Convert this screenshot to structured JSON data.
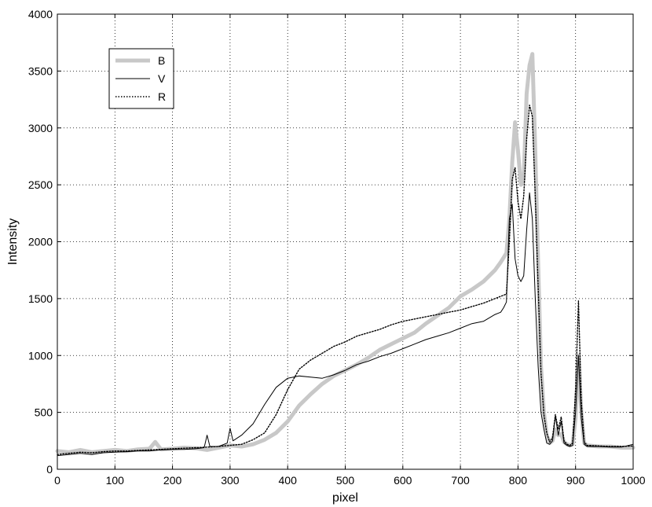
{
  "chart_data": {
    "type": "line",
    "title": "",
    "xlabel": "pixel",
    "ylabel": "Intensity",
    "xlim": [
      0,
      1000
    ],
    "ylim": [
      0,
      4000
    ],
    "x_ticks": [
      0,
      100,
      200,
      300,
      400,
      500,
      600,
      700,
      800,
      900,
      1000
    ],
    "y_ticks": [
      0,
      500,
      1000,
      1500,
      2000,
      2500,
      3000,
      3500,
      4000
    ],
    "x_tick_labels": [
      "0",
      "100",
      "200",
      "300",
      "400",
      "500",
      "600",
      "700",
      "800",
      "900",
      "1000"
    ],
    "y_tick_labels": [
      "0",
      "500",
      "1000",
      "1500",
      "2000",
      "2500",
      "3000",
      "3500",
      "4000"
    ],
    "grid": true,
    "legend_position": "top-left",
    "series": [
      {
        "name": "B",
        "style": "thick-gray",
        "color": "#c8c8c8",
        "x": [
          0,
          20,
          40,
          60,
          80,
          100,
          120,
          140,
          160,
          170,
          180,
          200,
          220,
          240,
          260,
          280,
          300,
          320,
          340,
          360,
          380,
          400,
          420,
          440,
          460,
          480,
          500,
          520,
          540,
          560,
          580,
          600,
          620,
          640,
          660,
          680,
          700,
          720,
          740,
          760,
          770,
          780,
          785,
          790,
          795,
          800,
          805,
          810,
          815,
          820,
          825,
          830,
          835,
          840,
          845,
          850,
          855,
          860,
          865,
          870,
          875,
          880,
          885,
          890,
          895,
          900,
          905,
          910,
          915,
          920,
          940,
          960,
          980,
          1000
        ],
        "y": [
          160,
          150,
          170,
          150,
          160,
          170,
          160,
          175,
          180,
          240,
          175,
          180,
          190,
          185,
          170,
          190,
          210,
          200,
          220,
          260,
          320,
          420,
          560,
          660,
          750,
          820,
          870,
          920,
          980,
          1050,
          1100,
          1150,
          1200,
          1280,
          1350,
          1420,
          1520,
          1580,
          1650,
          1750,
          1820,
          1900,
          2200,
          2700,
          3050,
          2800,
          2500,
          2550,
          3300,
          3550,
          3650,
          2800,
          1800,
          900,
          500,
          300,
          230,
          250,
          350,
          300,
          310,
          240,
          220,
          210,
          220,
          450,
          1000,
          500,
          230,
          210,
          200,
          200,
          190,
          190
        ]
      },
      {
        "name": "V",
        "style": "thin-solid",
        "color": "#000000",
        "x": [
          0,
          20,
          40,
          60,
          80,
          100,
          120,
          140,
          160,
          180,
          200,
          220,
          240,
          255,
          260,
          265,
          280,
          295,
          300,
          305,
          320,
          340,
          360,
          380,
          400,
          420,
          440,
          460,
          480,
          500,
          520,
          540,
          560,
          580,
          600,
          620,
          640,
          660,
          680,
          700,
          720,
          740,
          760,
          770,
          775,
          780,
          785,
          790,
          795,
          800,
          805,
          810,
          815,
          820,
          825,
          830,
          835,
          840,
          845,
          850,
          855,
          860,
          865,
          870,
          875,
          880,
          885,
          890,
          895,
          900,
          905,
          910,
          915,
          920,
          940,
          960,
          980,
          1000
        ],
        "y": [
          120,
          130,
          140,
          130,
          145,
          150,
          155,
          160,
          160,
          170,
          175,
          175,
          180,
          190,
          300,
          200,
          200,
          230,
          360,
          250,
          300,
          400,
          570,
          720,
          800,
          820,
          810,
          800,
          830,
          870,
          920,
          950,
          990,
          1020,
          1060,
          1100,
          1140,
          1170,
          1200,
          1240,
          1280,
          1300,
          1360,
          1380,
          1420,
          1470,
          2200,
          2330,
          1850,
          1700,
          1650,
          1700,
          2100,
          2430,
          2200,
          1500,
          900,
          500,
          350,
          230,
          220,
          250,
          470,
          300,
          420,
          230,
          210,
          200,
          210,
          500,
          1000,
          450,
          220,
          200,
          200,
          195,
          195,
          220
        ]
      },
      {
        "name": "R",
        "style": "dotted",
        "color": "#000000",
        "x": [
          0,
          20,
          40,
          60,
          80,
          100,
          120,
          140,
          160,
          180,
          200,
          220,
          240,
          260,
          280,
          300,
          320,
          340,
          360,
          380,
          400,
          420,
          440,
          460,
          480,
          500,
          520,
          540,
          560,
          580,
          600,
          620,
          640,
          660,
          680,
          700,
          720,
          740,
          760,
          770,
          780,
          785,
          790,
          795,
          800,
          805,
          810,
          815,
          820,
          825,
          830,
          835,
          840,
          845,
          850,
          855,
          860,
          865,
          870,
          875,
          880,
          885,
          890,
          895,
          900,
          905,
          910,
          915,
          920,
          940,
          960,
          980,
          1000
        ],
        "y": [
          130,
          140,
          150,
          145,
          155,
          160,
          160,
          165,
          170,
          175,
          180,
          185,
          190,
          195,
          200,
          210,
          220,
          260,
          320,
          480,
          700,
          880,
          960,
          1020,
          1080,
          1120,
          1170,
          1200,
          1230,
          1270,
          1300,
          1320,
          1340,
          1360,
          1380,
          1400,
          1430,
          1460,
          1500,
          1520,
          1540,
          2000,
          2550,
          2650,
          2350,
          2200,
          2400,
          2900,
          3200,
          3100,
          2400,
          1600,
          850,
          480,
          320,
          240,
          280,
          480,
          350,
          460,
          250,
          220,
          210,
          230,
          700,
          1480,
          600,
          240,
          210,
          205,
          200,
          200,
          205
        ]
      }
    ]
  }
}
